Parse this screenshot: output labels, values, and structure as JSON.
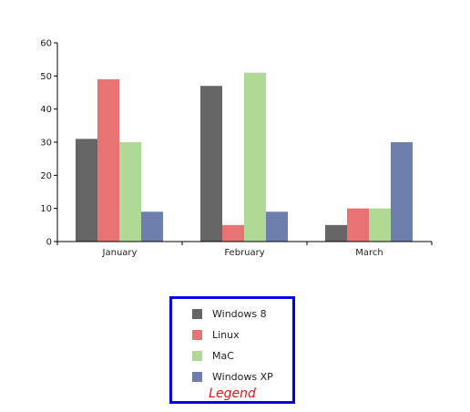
{
  "chart_data": {
    "type": "bar",
    "categories": [
      "January",
      "February",
      "March"
    ],
    "series": [
      {
        "name": "Windows 8",
        "color": "#666666",
        "values": [
          31,
          47,
          5
        ]
      },
      {
        "name": "Linux",
        "color": "#e87373",
        "values": [
          49,
          5,
          10
        ]
      },
      {
        "name": "MaC",
        "color": "#b0d996",
        "values": [
          30,
          51,
          10
        ]
      },
      {
        "name": "Windows XP",
        "color": "#6e7fad",
        "values": [
          9,
          9,
          30
        ]
      }
    ],
    "ylim": [
      0,
      60
    ],
    "yticks": [
      0,
      10,
      20,
      30,
      40,
      50,
      60
    ],
    "grid": false,
    "legend": {
      "title": "Legend",
      "placement": "bottom-center",
      "border_color": "#0000e6",
      "title_color": "#e01818"
    }
  }
}
